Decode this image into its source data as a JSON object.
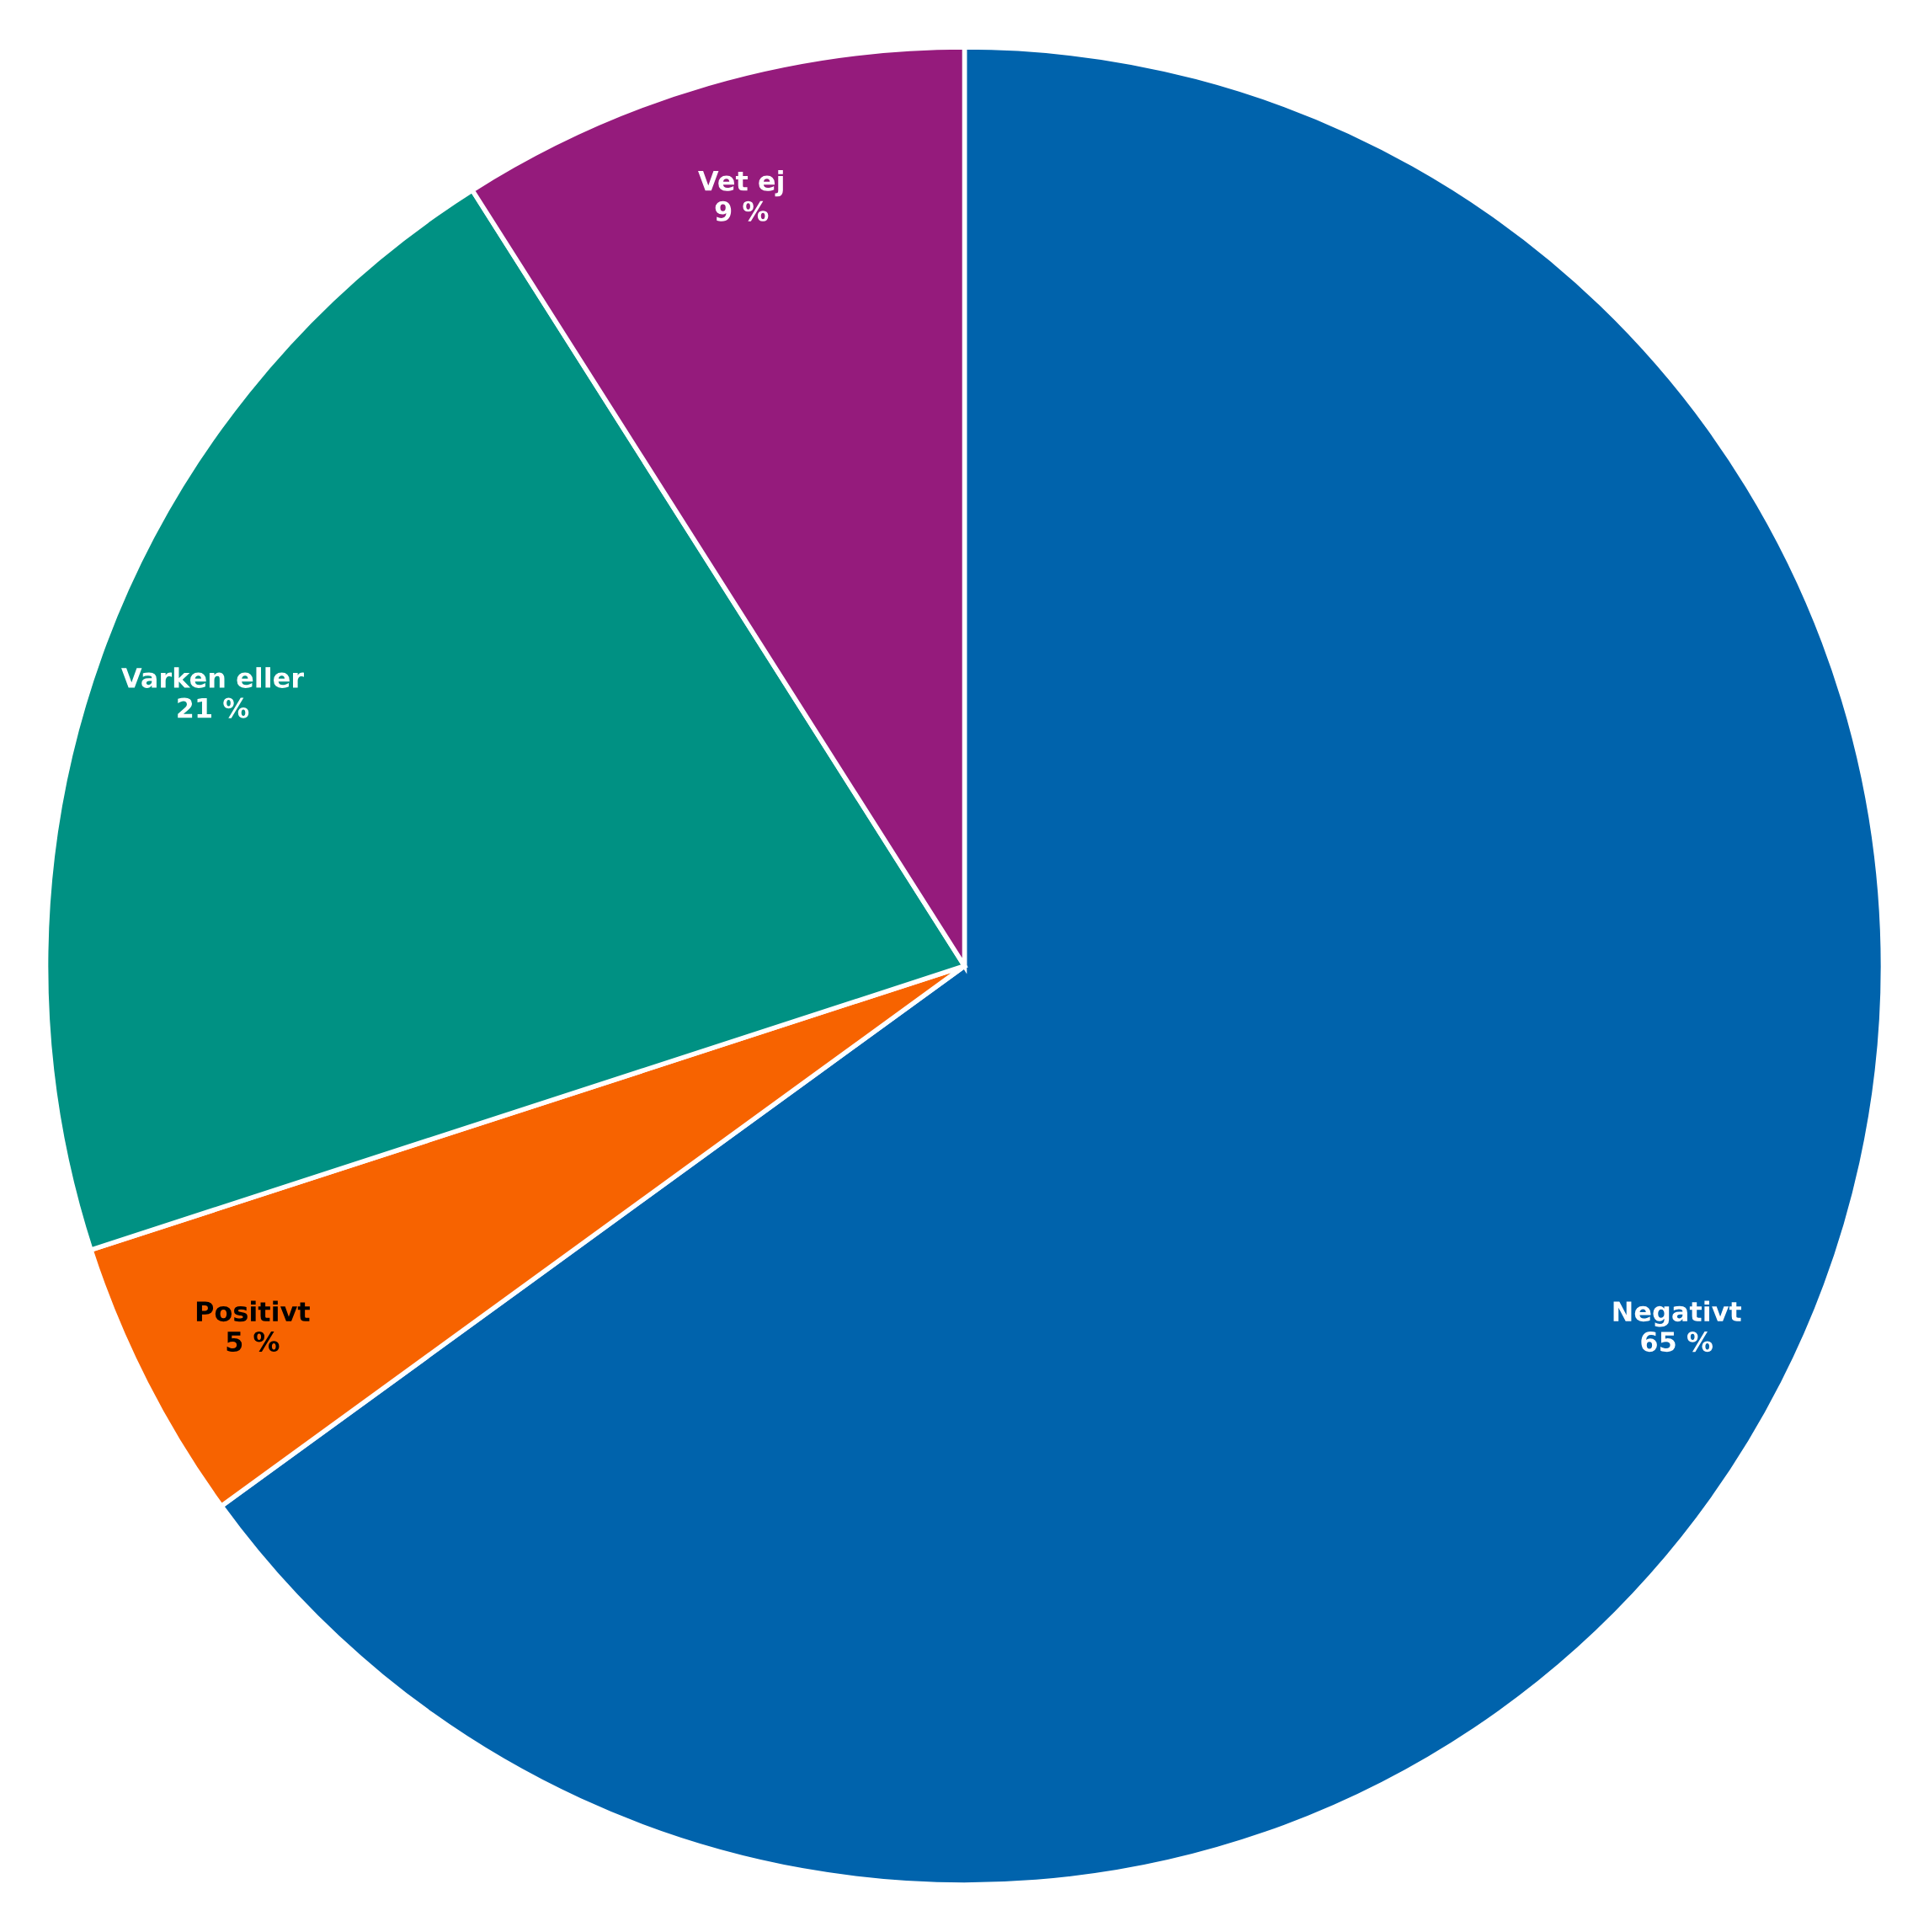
{
  "chart_data": {
    "type": "pie",
    "categories": [
      "Negativt",
      "Positivt",
      "Varken eller",
      "Vet ej"
    ],
    "values": [
      65,
      5,
      21,
      9
    ],
    "colors": [
      "#0063ac",
      "#f76300",
      "#009183",
      "#951b7c"
    ],
    "value_labels": [
      "65 %",
      "5 %",
      "21 %",
      "9 %"
    ],
    "legend": false
  }
}
